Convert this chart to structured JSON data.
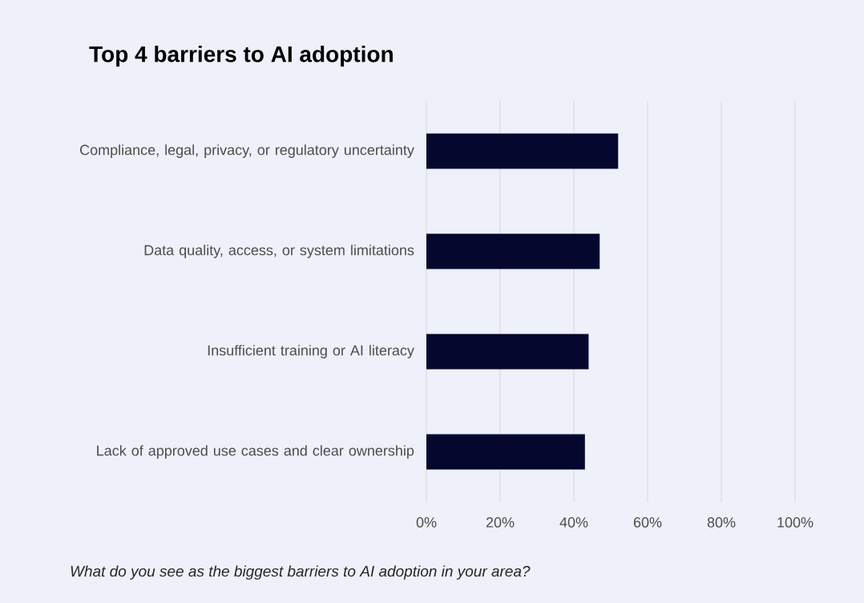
{
  "chart_data": {
    "type": "bar",
    "orientation": "horizontal",
    "title": "Top 4 barriers to AI adoption",
    "categories": [
      "Compliance, legal, privacy, or regulatory uncertainty",
      "Data quality, access, or system limitations",
      "Insufficient training or AI literacy",
      "Lack of approved use cases and clear ownership"
    ],
    "values": [
      52,
      47,
      44,
      43
    ],
    "color": "#05072e",
    "xlim": [
      0,
      100
    ],
    "xticks": [
      {
        "value": 0,
        "label": "0%"
      },
      {
        "value": 20,
        "label": "20%"
      },
      {
        "value": 40,
        "label": "40%"
      },
      {
        "value": 60,
        "label": "60%"
      },
      {
        "value": 80,
        "label": "80%"
      },
      {
        "value": 100,
        "label": "100%"
      }
    ],
    "grid": "x",
    "annotations": [
      "What do you see as the biggest barriers to AI adoption in your area?"
    ]
  }
}
